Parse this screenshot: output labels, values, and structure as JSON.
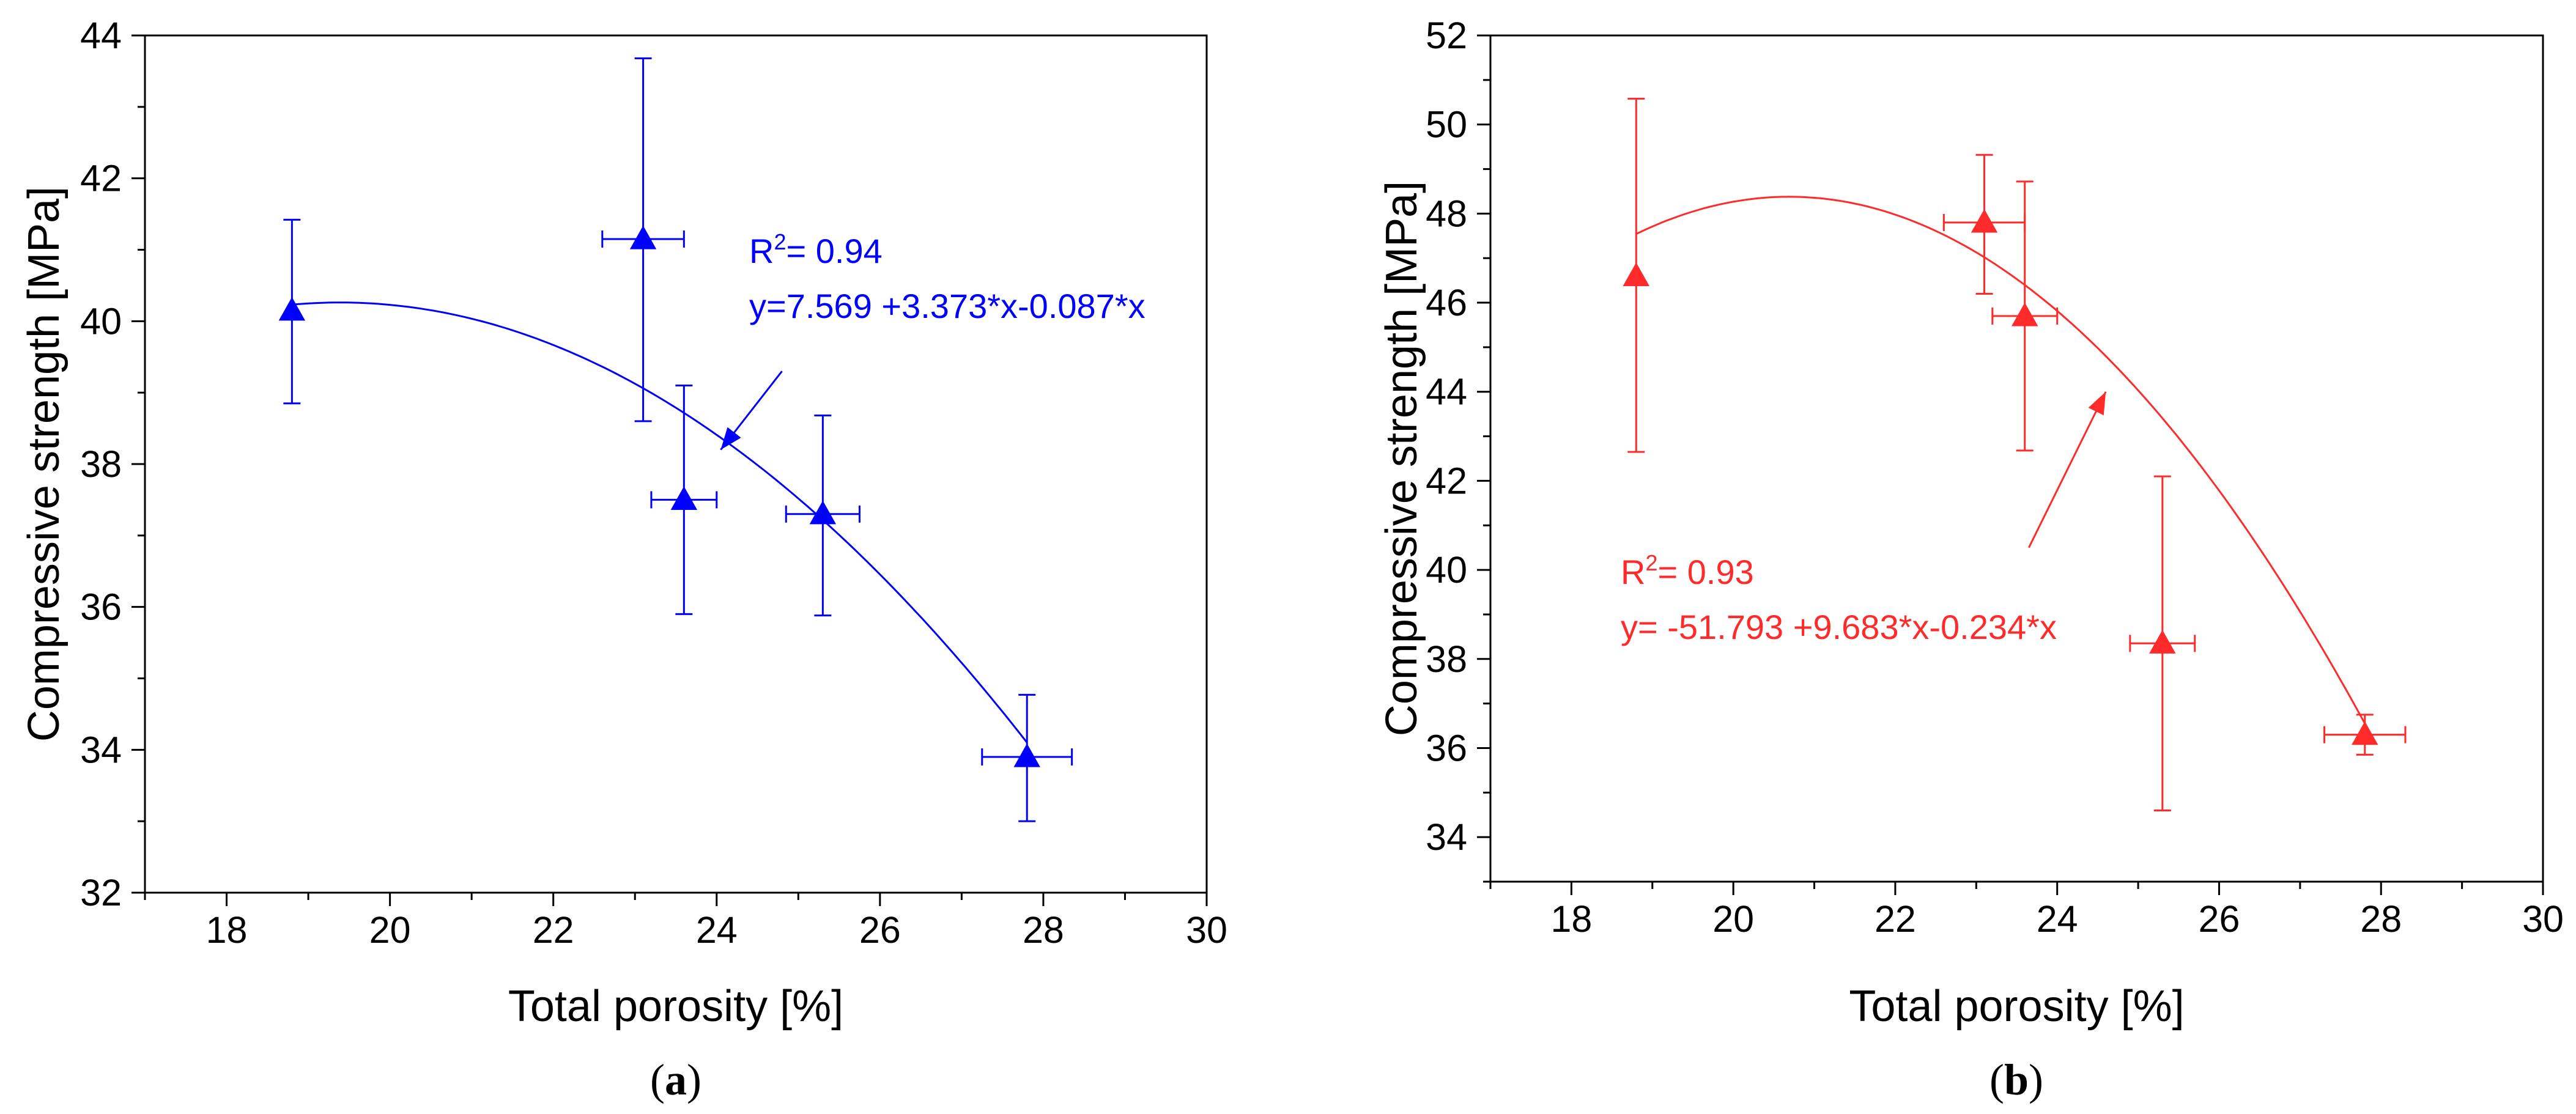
{
  "chart_data": [
    {
      "type": "scatter",
      "panel_label": "a",
      "color": "#0000ff",
      "xlabel": "Total porosity [%]",
      "ylabel": "Compressive strength [MPa]",
      "xlim": [
        17,
        30
      ],
      "ylim": [
        32,
        44
      ],
      "xticks": [
        18,
        20,
        22,
        24,
        26,
        28,
        30
      ],
      "yticks": [
        32,
        34,
        36,
        38,
        40,
        42,
        44
      ],
      "points": [
        {
          "x": 18.8,
          "y": 40.15,
          "xerr": 0,
          "ylow": 38.85,
          "yhigh": 41.42
        },
        {
          "x": 23.1,
          "y": 41.15,
          "xerr": 0.5,
          "ylow": 38.6,
          "yhigh": 43.68
        },
        {
          "x": 23.6,
          "y": 37.5,
          "xerr": 0.4,
          "ylow": 35.9,
          "yhigh": 39.1
        },
        {
          "x": 25.3,
          "y": 37.3,
          "xerr": 0.45,
          "ylow": 35.88,
          "yhigh": 38.68
        },
        {
          "x": 27.8,
          "y": 33.9,
          "xerr": 0.55,
          "ylow": 33.0,
          "yhigh": 34.77
        }
      ],
      "fit": {
        "coefficients": [
          7.569,
          3.373,
          -0.087
        ],
        "x_range": [
          18.8,
          27.8
        ],
        "r2_label": "R",
        "r2_sup": "2",
        "r2_value": "= 0.94",
        "equation": "y=7.569 +3.373*x-0.087*x",
        "arrow_from": [
          24.8,
          39.3
        ],
        "arrow_to": [
          24.05,
          38.2
        ]
      }
    },
    {
      "type": "scatter",
      "panel_label": "b",
      "color": "#ff2a2a",
      "xlabel": "Total porosity [%]",
      "ylabel": "Compressive strength [MPa]",
      "xlim": [
        17,
        30
      ],
      "ylim": [
        33,
        52
      ],
      "xticks": [
        18,
        20,
        22,
        24,
        26,
        28,
        30
      ],
      "yticks": [
        34,
        36,
        38,
        40,
        42,
        44,
        46,
        48,
        50,
        52
      ],
      "points": [
        {
          "x": 18.8,
          "y": 46.6,
          "xerr": 0,
          "ylow": 42.65,
          "yhigh": 50.58
        },
        {
          "x": 23.1,
          "y": 47.8,
          "xerr": 0.5,
          "ylow": 46.2,
          "yhigh": 49.32
        },
        {
          "x": 23.6,
          "y": 45.7,
          "xerr": 0.4,
          "ylow": 42.68,
          "yhigh": 48.72
        },
        {
          "x": 25.3,
          "y": 38.35,
          "xerr": 0.4,
          "ylow": 34.6,
          "yhigh": 42.1
        },
        {
          "x": 27.8,
          "y": 36.3,
          "xerr": 0.5,
          "ylow": 35.85,
          "yhigh": 36.75
        }
      ],
      "fit": {
        "coefficients": [
          -51.793,
          9.683,
          -0.234
        ],
        "x_range": [
          18.8,
          27.8
        ],
        "r2_label": "R",
        "r2_sup": "2",
        "r2_value": "= 0.93",
        "equation": "y= -51.793 +9.683*x-0.234*x",
        "arrow_from": [
          23.65,
          40.5
        ],
        "arrow_to": [
          24.6,
          44.0
        ]
      }
    }
  ]
}
